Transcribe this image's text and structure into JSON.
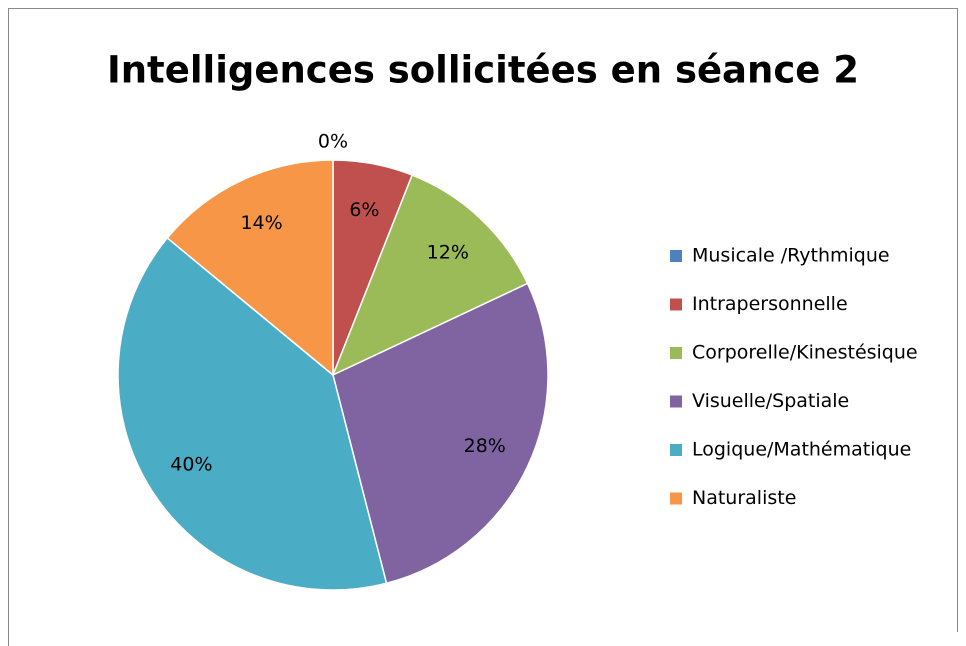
{
  "chart_data": {
    "type": "pie",
    "title": "Intelligences sollicitées en séance 2",
    "categories": [
      "Musicale /Rythmique",
      "Intrapersonnelle",
      "Corporelle/Kinestésique",
      "Visuelle/Spatiale",
      "Logique/Mathématique",
      "Naturaliste"
    ],
    "values": [
      0,
      6,
      12,
      28,
      40,
      14
    ],
    "value_labels": [
      "0%",
      "6%",
      "12%",
      "28%",
      "40%",
      "14%"
    ],
    "colors": [
      "#4f81bd",
      "#c0504d",
      "#9bbb59",
      "#8064a2",
      "#4bacc6",
      "#f79646"
    ],
    "legend": "right"
  }
}
